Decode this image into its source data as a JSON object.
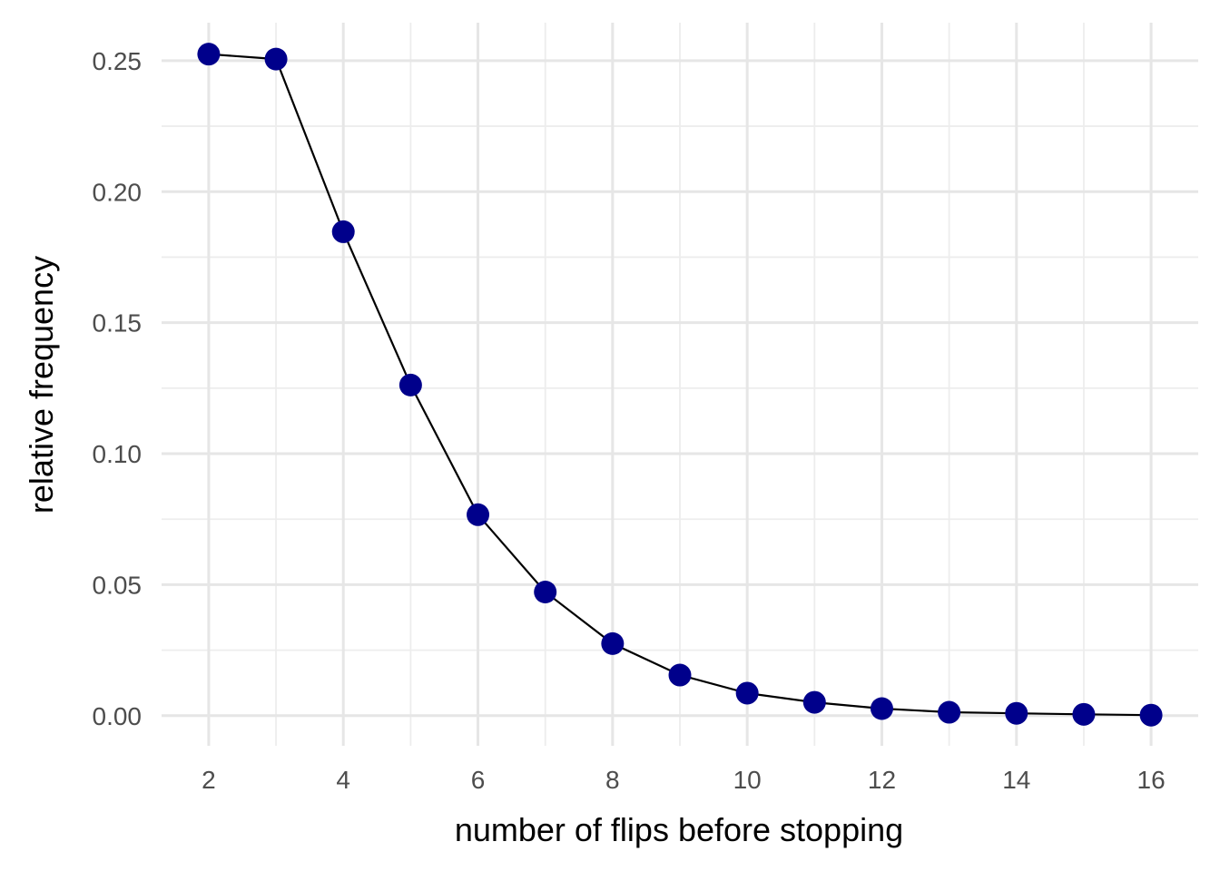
{
  "chart_data": {
    "type": "line",
    "xlabel": "number of flips before stopping",
    "ylabel": "relative frequency",
    "x": [
      2,
      3,
      4,
      5,
      6,
      7,
      8,
      9,
      10,
      11,
      12,
      13,
      14,
      15,
      16
    ],
    "series": [
      {
        "values": [
          0.2525,
          0.2506,
          0.1847,
          0.1262,
          0.0767,
          0.0472,
          0.0275,
          0.0155,
          0.0086,
          0.0051,
          0.0027,
          0.0013,
          0.0009,
          0.0005,
          0.0002
        ]
      }
    ],
    "xlim": [
      1.3,
      16.7
    ],
    "ylim": [
      -0.0115,
      0.2645
    ],
    "xticks": [
      2,
      4,
      6,
      8,
      10,
      12,
      14,
      16
    ],
    "xtick_labels": [
      "2",
      "4",
      "6",
      "8",
      "10",
      "12",
      "14",
      "16"
    ],
    "xminor": [
      3,
      5,
      7,
      9,
      11,
      13,
      15
    ],
    "yticks": [
      0,
      0.05,
      0.1,
      0.15,
      0.2,
      0.25
    ],
    "ytick_labels": [
      "0.00",
      "0.05",
      "0.10",
      "0.15",
      "0.20",
      "0.25"
    ],
    "yminor": [
      0.025,
      0.075,
      0.125,
      0.175,
      0.225
    ],
    "grid": true,
    "legend": "none",
    "colors": {
      "point": "#00008b",
      "line": "#000000",
      "grid": "#e6e6e6",
      "tick_text": "#4d4d4d"
    }
  }
}
